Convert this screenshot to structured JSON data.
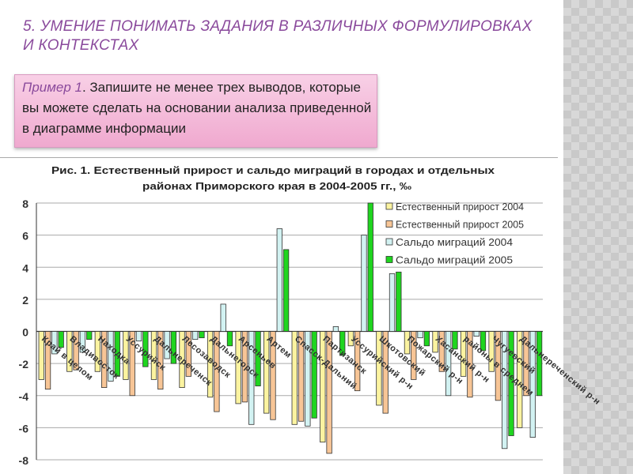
{
  "slide": {
    "heading_line1": "5. УМЕНИЕ ПОНИМАТЬ ЗАДАНИЯ В РАЗЛИЧНЫХ ФОРМУЛИРОВКАХ",
    "heading_line2": "И КОНТЕКСТАХ",
    "example_label": "Пример 1",
    "example_text": ". Запишите не менее трех выводов, которые вы можете сделать на основании анализа приведенной в диаграмме информации"
  },
  "chart_data": {
    "type": "bar",
    "title_line1": "Рис. 1. Естественный прирост и сальдо миграций в городах и отдельных",
    "title_line2": "районах Приморского края в 2004-2005 гг., ‰",
    "ylim": [
      -8,
      8
    ],
    "yticks": [
      "8",
      "6",
      "4",
      "2",
      "0",
      "-2",
      "-4",
      "-6",
      "-8"
    ],
    "grid": true,
    "legend_position": "top-right",
    "categories": [
      "Край в целом",
      "Владивосток",
      "Находка",
      "Уссурийск",
      "Дальнереченск",
      "Лесозаводск",
      "Дальнегорск",
      "Арсеньев",
      "Артем",
      "Спасск-Дальний",
      "Партизанск",
      "Уссурийский р-н",
      "Шкотовский",
      "Пожарский р-н",
      "Хасанский р-н",
      "районы в среднем",
      "Чугуевский",
      "Дальнереченский р-н"
    ],
    "series": [
      {
        "name": "Естественный прирост 2004",
        "color": "#fbf3a0",
        "values": [
          -3.0,
          -2.5,
          -2.5,
          -3.0,
          -3.0,
          -3.5,
          -4.1,
          -4.5,
          -5.1,
          -5.8,
          -6.9,
          -0.9,
          -4.6,
          -1.4,
          -1.3,
          -2.8,
          -2.5,
          -6.0
        ]
      },
      {
        "name": "Естественный прирост 2005",
        "color": "#f7c596",
        "values": [
          -3.6,
          -2.4,
          -3.5,
          -4.0,
          -3.6,
          -2.8,
          -5.0,
          -4.4,
          -5.5,
          -5.6,
          -7.6,
          -3.7,
          -5.1,
          -3.0,
          -2.5,
          -4.1,
          -4.3,
          -4.0
        ]
      },
      {
        "name": "Сальдо миграций 2004",
        "color": "#d2f2f2",
        "values": [
          -1.4,
          -1.3,
          -3.1,
          -0.6,
          -1.7,
          -0.5,
          1.7,
          -5.8,
          6.4,
          -5.9,
          0.3,
          6.0,
          3.6,
          -0.4,
          -4.0,
          -0.3,
          -7.3,
          -6.6
        ]
      },
      {
        "name": "Сальдо миграций 2005",
        "color": "#1fd51f",
        "values": [
          -1.0,
          -0.5,
          -2.8,
          -2.2,
          -2.0,
          -0.4,
          -0.9,
          -3.4,
          5.1,
          -5.4,
          -1.5,
          8.3,
          3.7,
          -0.9,
          -1.1,
          -1.2,
          -6.5,
          -4.0
        ]
      }
    ]
  }
}
